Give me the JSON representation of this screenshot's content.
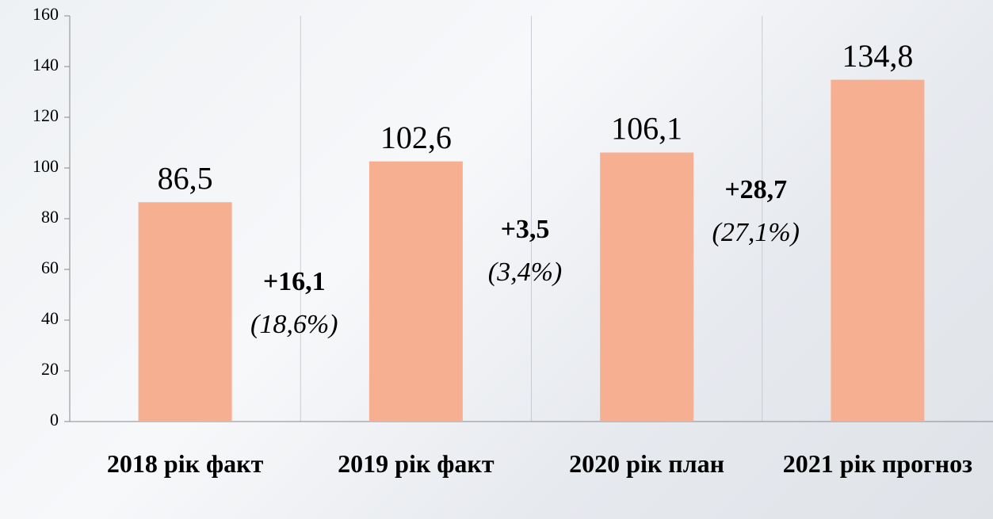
{
  "chart_data": {
    "type": "bar",
    "categories": [
      "2018 рік факт",
      "2019 рік факт",
      "2020 рік план",
      "2021 рік прогноз"
    ],
    "values": [
      86.5,
      102.6,
      106.1,
      134.8
    ],
    "value_labels": [
      "86,5",
      "102,6",
      "106,1",
      "134,8"
    ],
    "color": "#f6b091",
    "ylim": [
      0,
      160
    ],
    "yticks": [
      0,
      20,
      40,
      60,
      80,
      100,
      120,
      140,
      160
    ],
    "grid": false,
    "annotations": [
      {
        "text": "+16,1",
        "subtext": "(18,6%)"
      },
      {
        "text": "+3,5",
        "subtext": "(3,4%)"
      },
      {
        "text": "+28,7",
        "subtext": "(27,1%)"
      }
    ]
  }
}
